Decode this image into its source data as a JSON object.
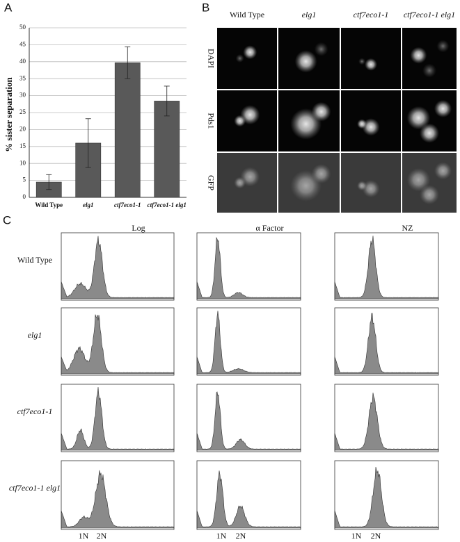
{
  "panel_labels": [
    "A",
    "B",
    "C"
  ],
  "chart_data": {
    "type": "bar",
    "ylabel": "% sister separation",
    "categories": [
      "Wild Type",
      "elg1",
      "ctf7eco1-1",
      "ctf7eco1-1 elg1"
    ],
    "values": [
      4.5,
      16,
      39.7,
      28.4
    ],
    "errors": [
      2.2,
      7.2,
      4.7,
      4.4
    ],
    "color": "#595959",
    "ylim": [
      0,
      50
    ],
    "yticks": [
      0,
      5,
      10,
      15,
      20,
      25,
      30,
      35,
      40,
      45,
      50
    ],
    "grid": true
  },
  "panel_b": {
    "columns": [
      "Wild Type",
      "elg1",
      "ctf7eco1-1",
      "ctf7eco1-1 elg1"
    ],
    "rows": [
      "DAPI",
      "Pds1",
      "GFP"
    ]
  },
  "panel_c": {
    "columns": [
      "Log",
      "α Factor",
      "NZ"
    ],
    "rows": [
      "Wild Type",
      "elg1",
      "ctf7eco1-1",
      "ctf7eco1-1 elg1"
    ],
    "ploidy_labels": [
      "1N",
      "2N"
    ]
  }
}
